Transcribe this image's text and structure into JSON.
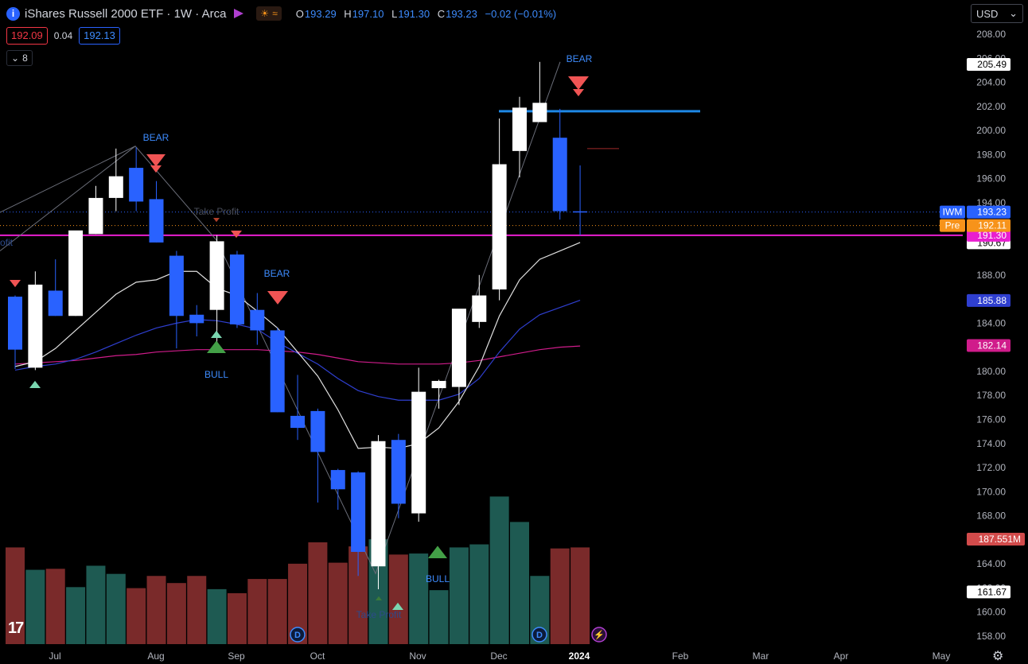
{
  "header": {
    "symbol_icon": "i",
    "title": "iShares Russell 2000 ETF · 1W · Arca",
    "flag_icon": "flag-icon",
    "session_icons": [
      "sunrise-icon",
      "approx-icon"
    ],
    "session_labels": {
      "sun": "☀",
      "wave": "≈"
    },
    "ohlc": {
      "o_label": "O",
      "o": "193.29",
      "h_label": "H",
      "h": "197.10",
      "l_label": "L",
      "l": "191.30",
      "c_label": "C",
      "c": "193.23",
      "change": "−0.02 (−0.01%)"
    },
    "sell_price": "192.09",
    "spread": "0.04",
    "buy_price": "192.13",
    "collapse_label": "8",
    "collapse_icon": "chevron-down-icon"
  },
  "currency": {
    "label": "USD",
    "icon": "chevron-down-icon"
  },
  "logo": "17",
  "settings_icon": "⚙",
  "colors": {
    "bull_candle": "#ffffff",
    "bear_candle": "#2962ff",
    "vol_up": "#1e5a52",
    "vol_down": "#7a2a2a",
    "ema_fast": "#e0e0e0",
    "ema_mid": "#2f3fd0",
    "ema_slow": "#d01c8b",
    "magenta_line": "#e91ed0",
    "zone_line": "#1e88e5",
    "bear_signal": "#f05454",
    "bull_signal": "#43a047",
    "text_blue": "#3d8bfd"
  },
  "chart_data": {
    "type": "candlestick",
    "x_ticks": [
      "Jul",
      "Aug",
      "Sep",
      "Oct",
      "Nov",
      "Dec",
      "2024",
      "Feb",
      "Mar",
      "Apr",
      "May"
    ],
    "y_ticks": [
      "208.00",
      "206.00",
      "204.00",
      "202.00",
      "200.00",
      "198.00",
      "196.00",
      "194.00",
      "188.00",
      "186.00",
      "184.00",
      "180.00",
      "178.00",
      "176.00",
      "174.00",
      "172.00",
      "170.00",
      "168.00",
      "164.00",
      "162.00",
      "160.00",
      "158.00"
    ],
    "y_range": [
      157.6,
      209.0
    ],
    "candles": [
      {
        "o": 186.2,
        "h": 186.3,
        "l": 180.2,
        "c": 181.8
      },
      {
        "o": 180.3,
        "h": 188.3,
        "l": 180.1,
        "c": 187.2
      },
      {
        "o": 186.7,
        "h": 189.3,
        "l": 184.6,
        "c": 184.6
      },
      {
        "o": 184.6,
        "h": 191.6,
        "l": 184.6,
        "c": 191.7
      },
      {
        "o": 191.4,
        "h": 195.4,
        "l": 191.4,
        "c": 194.4
      },
      {
        "o": 194.4,
        "h": 198.5,
        "l": 193.3,
        "c": 196.2
      },
      {
        "o": 196.9,
        "h": 198.6,
        "l": 193.3,
        "c": 194.1
      },
      {
        "o": 194.3,
        "h": 195.8,
        "l": 190.7,
        "c": 190.7
      },
      {
        "o": 189.6,
        "h": 190.0,
        "l": 181.9,
        "c": 184.6
      },
      {
        "o": 184.7,
        "h": 185.5,
        "l": 182.9,
        "c": 184.0
      },
      {
        "o": 185.1,
        "h": 191.3,
        "l": 181.9,
        "c": 190.8
      },
      {
        "o": 189.7,
        "h": 190.0,
        "l": 183.6,
        "c": 183.9
      },
      {
        "o": 185.1,
        "h": 186.5,
        "l": 182.2,
        "c": 183.4
      },
      {
        "o": 183.4,
        "h": 183.6,
        "l": 176.6,
        "c": 176.6
      },
      {
        "o": 176.3,
        "h": 179.7,
        "l": 174.3,
        "c": 175.3
      },
      {
        "o": 176.7,
        "h": 176.9,
        "l": 169.1,
        "c": 173.3
      },
      {
        "o": 171.8,
        "h": 171.9,
        "l": 168.5,
        "c": 170.2
      },
      {
        "o": 171.6,
        "h": 171.7,
        "l": 163.0,
        "c": 165.0
      },
      {
        "o": 163.8,
        "h": 174.7,
        "l": 161.9,
        "c": 174.2
      },
      {
        "o": 174.3,
        "h": 174.8,
        "l": 167.8,
        "c": 169.0
      },
      {
        "o": 168.2,
        "h": 180.3,
        "l": 167.5,
        "c": 178.3
      },
      {
        "o": 178.6,
        "h": 179.3,
        "l": 176.9,
        "c": 179.2
      },
      {
        "o": 178.7,
        "h": 184.7,
        "l": 177.2,
        "c": 185.2
      },
      {
        "o": 184.1,
        "h": 188.0,
        "l": 183.6,
        "c": 186.3
      },
      {
        "o": 186.8,
        "h": 201.0,
        "l": 185.9,
        "c": 197.2
      },
      {
        "o": 198.3,
        "h": 202.8,
        "l": 196.1,
        "c": 201.9
      },
      {
        "o": 200.7,
        "h": 205.7,
        "l": 200.7,
        "c": 202.3
      },
      {
        "o": 199.4,
        "h": 201.8,
        "l": 192.6,
        "c": 193.3
      },
      {
        "o": 193.29,
        "h": 197.1,
        "l": 191.3,
        "c": 193.23
      }
    ],
    "volume": {
      "scale_max_label": "187.551M",
      "relative": [
        0.95,
        0.73,
        0.74,
        0.56,
        0.77,
        0.69,
        0.55,
        0.67,
        0.6,
        0.67,
        0.54,
        0.5,
        0.64,
        0.64,
        0.79,
        1.0,
        0.8,
        0.96,
        1.03,
        0.88,
        0.89,
        0.53,
        0.95,
        0.98,
        1.45,
        1.2,
        0.67,
        0.94,
        0.95
      ]
    },
    "ema_fast": [
      180.4,
      180.8,
      181.9,
      183.4,
      184.9,
      186.4,
      187.4,
      187.6,
      188.3,
      188.3,
      186.9,
      186.3,
      185.0,
      183.6,
      181.6,
      179.6,
      176.8,
      173.6,
      173.7,
      173.6,
      174.0,
      175.3,
      177.5,
      180.4,
      184.6,
      187.6,
      189.3,
      190.0,
      190.7
    ],
    "ema_mid": [
      180.1,
      180.4,
      180.6,
      181.0,
      181.6,
      182.3,
      183.0,
      183.6,
      184.0,
      184.3,
      184.2,
      183.9,
      183.5,
      182.4,
      181.5,
      180.6,
      179.4,
      178.4,
      177.9,
      177.6,
      177.6,
      177.6,
      178.1,
      179.4,
      181.6,
      183.5,
      184.7,
      185.3,
      185.9
    ],
    "ema_slow": [
      180.6,
      180.7,
      180.8,
      180.9,
      181.1,
      181.3,
      181.4,
      181.6,
      181.7,
      181.8,
      181.8,
      181.8,
      181.8,
      181.7,
      181.6,
      181.4,
      181.1,
      180.8,
      180.7,
      180.6,
      180.6,
      180.6,
      180.7,
      180.9,
      181.2,
      181.5,
      181.8,
      182.0,
      182.1
    ],
    "price_labels": [
      {
        "text": "205.49",
        "value": 205.49,
        "bg": "#ffffff",
        "fg": "#000000"
      },
      {
        "text": "190.67",
        "value": 190.67,
        "bg": "#ffffff",
        "fg": "#000000"
      },
      {
        "text": "185.88",
        "value": 185.88,
        "bg": "#2f3fd0",
        "fg": "#ffffff"
      },
      {
        "text": "182.14",
        "value": 182.14,
        "bg": "#d01c8b",
        "fg": "#ffffff"
      },
      {
        "text": "191.30",
        "value": 191.3,
        "bg": "#e91ed0",
        "fg": "#ffffff"
      },
      {
        "text": "161.67",
        "value": 161.67,
        "bg": "#ffffff",
        "fg": "#000000"
      }
    ],
    "last_price": {
      "tag": "IWM",
      "text": "193.23",
      "value": 193.23
    },
    "premarket": {
      "tag": "Pre",
      "text": "192.11",
      "value": 192.11
    },
    "signals": {
      "bear_labels": [
        "BEAR",
        "BEAR",
        "BEAR"
      ],
      "bull_labels": [
        "BULL",
        "BULL"
      ],
      "take_profit_labels": [
        "Take Profit",
        "Take Profit",
        "rofit"
      ]
    },
    "events": [
      "D",
      "D",
      "⚡"
    ]
  }
}
